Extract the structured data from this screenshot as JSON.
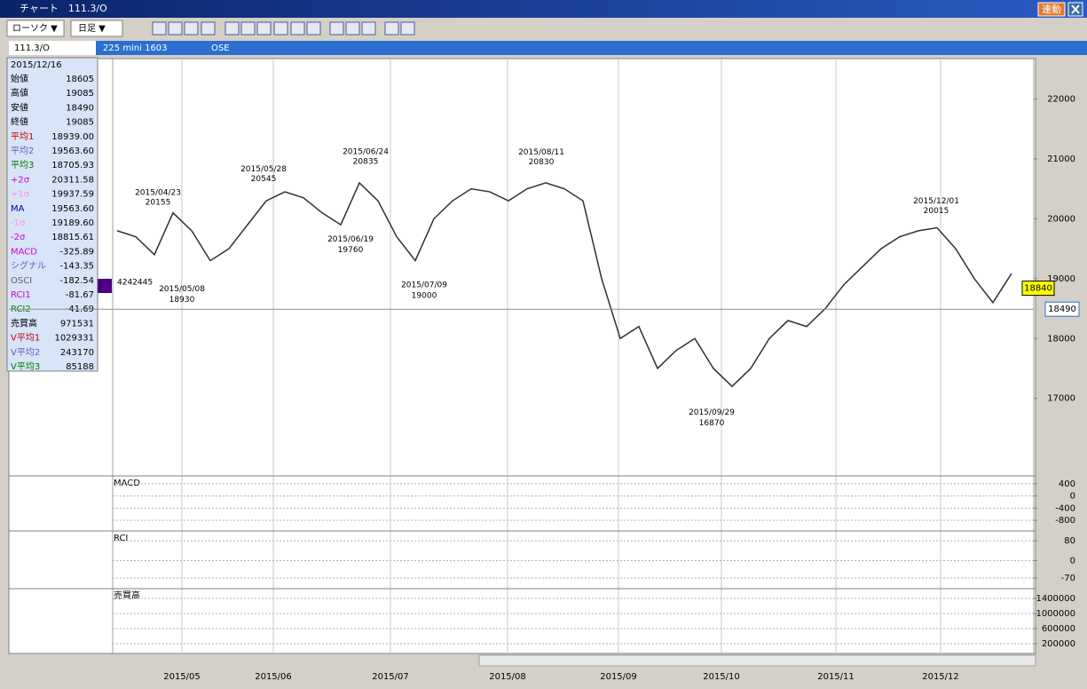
{
  "window": {
    "title": "チャート　111.3/O",
    "link_button": "連動"
  },
  "toolbar": {
    "chart_style": "ローソク ▼",
    "period": "日足 ▼"
  },
  "symbol_bar": {
    "symbol": "111.3/O",
    "contract": "225 mini 1603",
    "exchange": "OSE"
  },
  "info_panel": {
    "date": "2015/12/16",
    "rows": [
      {
        "label": "始値",
        "value": "18605",
        "color": "#000000"
      },
      {
        "label": "高値",
        "value": "19085",
        "color": "#000000"
      },
      {
        "label": "安値",
        "value": "18490",
        "color": "#000000"
      },
      {
        "label": "終値",
        "value": "19085",
        "color": "#000000"
      },
      {
        "label": "平均1",
        "value": "18939.00",
        "color": "#c00000"
      },
      {
        "label": "平均2",
        "value": "19563.60",
        "color": "#6060c0"
      },
      {
        "label": "平均3",
        "value": "18705.93",
        "color": "#008000"
      },
      {
        "label": "+2σ",
        "value": "20311.58",
        "color": "#d000d0"
      },
      {
        "label": "+1σ",
        "value": "19937.59",
        "color": "#ff90d0"
      },
      {
        "label": "MA",
        "value": "19563.60",
        "color": "#0000a0"
      },
      {
        "label": "-1σ",
        "value": "19189.60",
        "color": "#ff90d0"
      },
      {
        "label": "-2σ",
        "value": "18815.61",
        "color": "#d000d0"
      },
      {
        "label": "MACD",
        "value": "-325.89",
        "color": "#d000d0"
      },
      {
        "label": "シグナル",
        "value": "-143.35",
        "color": "#6060c0"
      },
      {
        "label": "OSCI",
        "value": "-182.54",
        "color": "#606060"
      },
      {
        "label": "RCI1",
        "value": "-81.67",
        "color": "#d000d0"
      },
      {
        "label": "RCI2",
        "value": "-41.69",
        "color": "#008000"
      },
      {
        "label": "売買高",
        "value": "971531",
        "color": "#000000"
      },
      {
        "label": "V平均1",
        "value": "1029331",
        "color": "#c00000"
      },
      {
        "label": "V平均2",
        "value": "243170",
        "color": "#6060c0"
      },
      {
        "label": "V平均3",
        "value": "85188",
        "color": "#008000"
      }
    ]
  },
  "x_axis": {
    "labels": [
      "2015/05",
      "2015/06",
      "2015/07",
      "2015/08",
      "2015/09",
      "2015/10",
      "2015/11",
      "2015/12"
    ]
  },
  "chart_data": [
    {
      "type": "line",
      "color": "#303030",
      "values": [
        19800,
        19700,
        19400,
        20100,
        19800,
        19300,
        19500,
        19900,
        20300,
        20450,
        20350,
        20100,
        19900,
        20600,
        20300,
        19700,
        19300,
        20000,
        20300,
        20500,
        20450,
        20300,
        20500,
        20600,
        20500,
        20300,
        19000,
        18000,
        18200,
        17500,
        17800,
        18000,
        17500,
        17200,
        17500,
        18000,
        18300,
        18200,
        18500,
        18900,
        19200,
        19500,
        19700,
        19800,
        19850,
        19500,
        19000,
        18600,
        19085
      ],
      "ylim": [
        15720,
        22690
      ],
      "yticks": [
        22000,
        21000,
        20000,
        19000,
        18000,
        17000
      ],
      "annotations": [
        {
          "date": "2015/04/23",
          "value": 20155
        },
        {
          "date": "2015/05/08",
          "value": 18930
        },
        {
          "date": "2015/05/28",
          "value": 20545
        },
        {
          "date": "2015/06/19",
          "value": 19760
        },
        {
          "date": "2015/06/24",
          "value": 20835
        },
        {
          "date": "2015/07/09",
          "value": 19000
        },
        {
          "date": "2015/08/11",
          "value": 20830
        },
        {
          "date": "2015/09/29",
          "value": 16870
        },
        {
          "date": "2015/12/01",
          "value": 20015
        }
      ],
      "last_price": 18840,
      "reference_price": 18490,
      "left_label": 4242445
    },
    {
      "type": "line",
      "title": "MACD",
      "ylim": [
        -1120,
        630
      ],
      "yticks": [
        400,
        0,
        -400,
        -800
      ]
    },
    {
      "type": "line",
      "title": "RCI",
      "ylim": [
        -109,
        116
      ],
      "yticks": [
        80,
        0,
        -70
      ]
    },
    {
      "type": "bar",
      "title": "売買高",
      "ylim": [
        -35000,
        1635000
      ],
      "yticks": [
        1400000,
        1000000,
        600000,
        200000
      ]
    }
  ]
}
